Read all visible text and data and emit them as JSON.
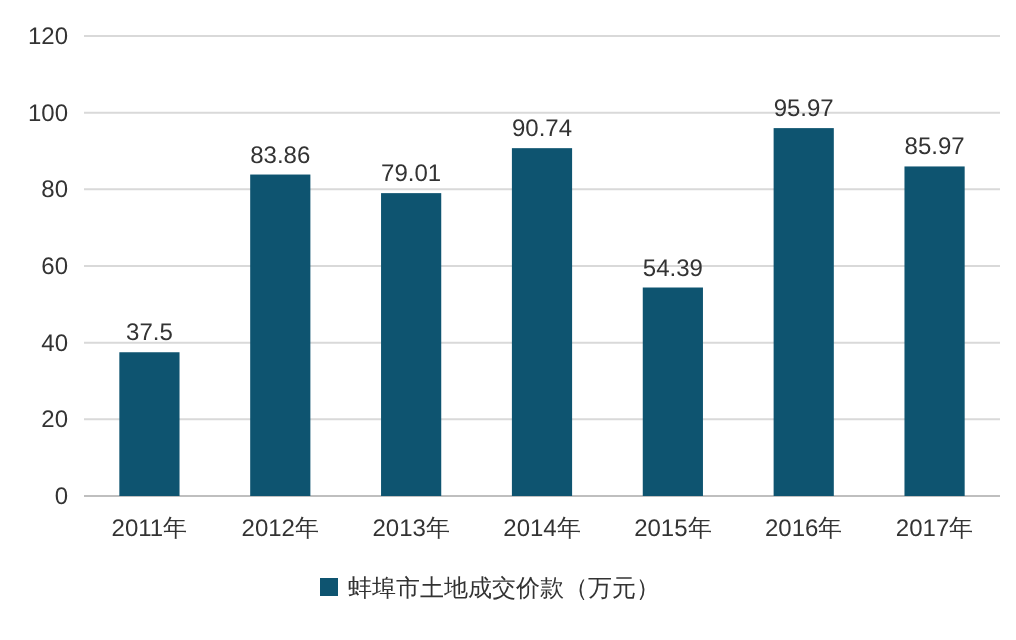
{
  "chart_data": {
    "type": "bar",
    "categories": [
      "2011年",
      "2012年",
      "2013年",
      "2014年",
      "2015年",
      "2016年",
      "2017年"
    ],
    "series": [
      {
        "name": "蚌埠市土地成交价款（万元）",
        "color": "#0e5470",
        "values": [
          37.5,
          83.86,
          79.01,
          90.74,
          54.39,
          95.97,
          85.97
        ]
      }
    ],
    "ylim": [
      0,
      120
    ],
    "yticks": [
      0,
      20,
      40,
      60,
      80,
      100,
      120
    ],
    "grid": "y",
    "legend": "bottom",
    "data_labels": true
  }
}
